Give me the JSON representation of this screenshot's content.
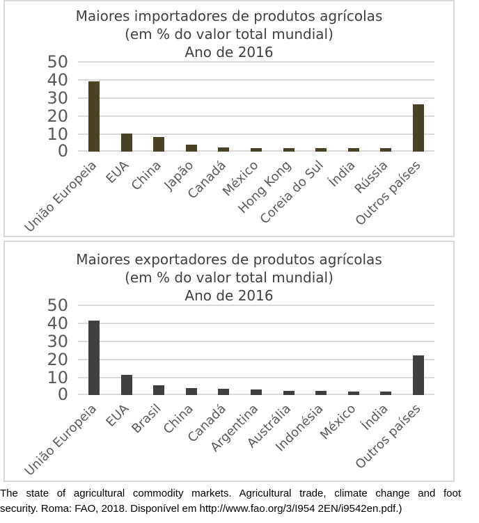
{
  "chart_data": [
    {
      "type": "bar",
      "title_lines": [
        "Maiores importadores de produtos agrícolas",
        "(em % do valor total mundial)",
        "Ano de 2016"
      ],
      "categories": [
        "União Europeia",
        "EUA",
        "China",
        "Japão",
        "Canadá",
        "México",
        "Hong Kong",
        "Coreia do Sul",
        "Índia",
        "Rússia",
        "Outros países"
      ],
      "values": [
        39,
        10,
        8,
        4,
        2.5,
        2,
        2,
        2,
        2,
        2,
        26
      ],
      "ylim": [
        0,
        50
      ],
      "y_ticks": [
        50,
        40,
        30,
        20,
        10,
        0
      ],
      "bar_color": "#4a4227",
      "grid": true,
      "legend": "none",
      "xlabel": "",
      "ylabel": ""
    },
    {
      "type": "bar",
      "title_lines": [
        "Maiores exportadores de produtos agrícolas",
        "(em % do valor total mundial)",
        "Ano de 2016"
      ],
      "categories": [
        "União Europeia",
        "EUA",
        "Brasil",
        "China",
        "Canadá",
        "Argentina",
        "Austrália",
        "Indonésia",
        "México",
        "Índia",
        "Outros países"
      ],
      "values": [
        41,
        11,
        5.5,
        4,
        3.5,
        3,
        2.5,
        2.5,
        2,
        2,
        22
      ],
      "ylim": [
        0,
        50
      ],
      "y_ticks": [
        50,
        40,
        30,
        20,
        10,
        0
      ],
      "bar_color": "#404040",
      "grid": true,
      "legend": "none",
      "xlabel": "",
      "ylabel": ""
    }
  ],
  "caption": {
    "line1": "The state of agricultural commodity markets. Agricultural trade, climate change and foot",
    "line2": "security. Roma: FAO, 2018. Disponível em http://www.fao.org/3/I954 2EN/i9542en.pdf.)"
  },
  "colors": {
    "importers_bar": "#4a4227",
    "exporters_bar": "#404040",
    "gridline": "#d9d9d9",
    "card_border": "#d9d9d9",
    "axis_text": "#595959",
    "title_text": "#404040"
  }
}
